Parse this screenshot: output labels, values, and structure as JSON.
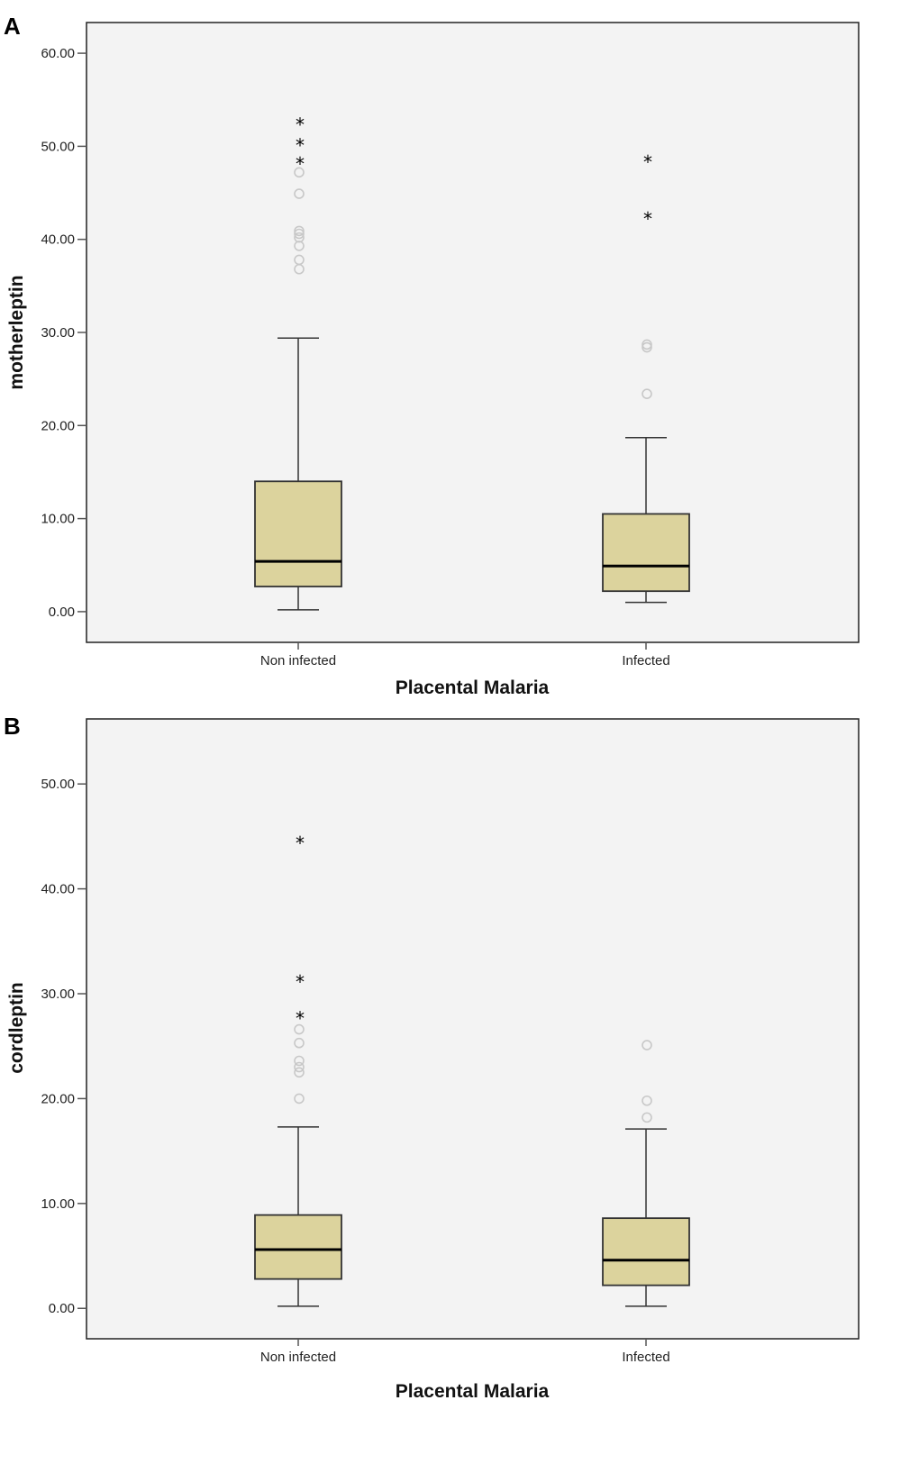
{
  "colors": {
    "plot_background": "#f3f3f3",
    "box_fill": "#dcd39d",
    "box_stroke": "#333333",
    "median": "#000000",
    "outlier_circle": "#c8c8c8",
    "extreme_star": "#000000"
  },
  "chart_data": [
    {
      "panel_label": "A",
      "type": "box",
      "xlabel": "Placental Malaria",
      "ylabel": "motherleptin",
      "ylim": [
        -3.3,
        63.3
      ],
      "yticks": [
        0,
        10,
        20,
        30,
        40,
        50,
        60
      ],
      "ytick_labels": [
        "0.00",
        "10.00",
        "20.00",
        "30.00",
        "40.00",
        "50.00",
        "60.00"
      ],
      "grid": false,
      "categories": [
        "Non infected",
        "Infected"
      ],
      "boxes": [
        {
          "category": "Non infected",
          "whisker_low": 0.2,
          "q1": 2.7,
          "median": 5.4,
          "q3": 14.0,
          "whisker_high": 29.4,
          "outliers": [
            36.8,
            37.8,
            39.3,
            40.2,
            40.6,
            40.9,
            44.9,
            47.2
          ],
          "extremes": [
            48.3,
            50.3,
            52.5
          ]
        },
        {
          "category": "Infected",
          "whisker_low": 1.0,
          "q1": 2.2,
          "median": 4.9,
          "q3": 10.5,
          "whisker_high": 18.7,
          "outliers": [
            23.4,
            28.4,
            28.7
          ],
          "extremes": [
            42.4,
            48.5
          ]
        }
      ]
    },
    {
      "panel_label": "B",
      "type": "box",
      "xlabel": "Placental Malaria",
      "ylabel": "cordleptin",
      "ylim": [
        -2.9,
        56.2
      ],
      "yticks": [
        0,
        10,
        20,
        30,
        40,
        50
      ],
      "ytick_labels": [
        "0.00",
        "10.00",
        "20.00",
        "30.00",
        "40.00",
        "50.00"
      ],
      "grid": false,
      "categories": [
        "Non infected",
        "Infected"
      ],
      "boxes": [
        {
          "category": "Non infected",
          "whisker_low": 0.2,
          "q1": 2.8,
          "median": 5.6,
          "q3": 8.9,
          "whisker_high": 17.3,
          "outliers": [
            20.0,
            22.5,
            23.0,
            23.6,
            25.3,
            26.6
          ],
          "extremes": [
            27.8,
            31.3,
            44.5
          ]
        },
        {
          "category": "Infected",
          "whisker_low": 0.2,
          "q1": 2.2,
          "median": 4.6,
          "q3": 8.6,
          "whisker_high": 17.1,
          "outliers": [
            18.2,
            19.8,
            25.1
          ],
          "extremes": []
        }
      ]
    }
  ]
}
